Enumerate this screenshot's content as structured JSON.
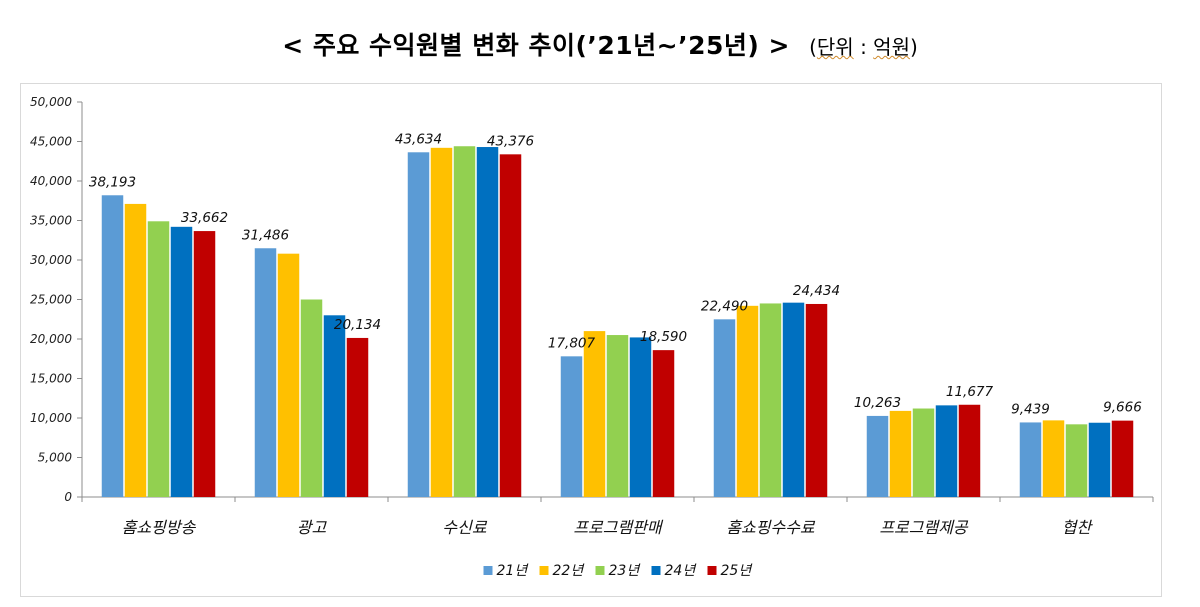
{
  "title": {
    "main": "<  주요  수익원별  변화  추이(’21년~’25년)  >",
    "unit_open": "(",
    "unit_word": "단위",
    "unit_rest": " : ",
    "unit_value": "억원",
    "unit_close": ")"
  },
  "chart_data": {
    "type": "bar",
    "title": "주요 수익원별 변화 추이(’21년~’25년)",
    "unit": "억원",
    "xlabel": "",
    "ylabel": "",
    "ylim": [
      0,
      50000
    ],
    "yticks": [
      0,
      5000,
      10000,
      15000,
      20000,
      25000,
      30000,
      35000,
      40000,
      45000,
      50000
    ],
    "ytick_labels": [
      "0",
      "5,000",
      "10,000",
      "15,000",
      "20,000",
      "25,000",
      "30,000",
      "35,000",
      "40,000",
      "45,000",
      "50,000"
    ],
    "grid": false,
    "legend_position": "bottom",
    "categories": [
      "홈쇼핑방송",
      "광고",
      "수신료",
      "프로그램판매",
      "홈쇼핑수수료",
      "프로그램제공",
      "협찬"
    ],
    "series": [
      {
        "name": "21년",
        "color": "#5b9bd5",
        "values": [
          38193,
          31486,
          43634,
          17807,
          22490,
          10263,
          9439
        ]
      },
      {
        "name": "22년",
        "color": "#ffc000",
        "values": [
          37100,
          30800,
          44200,
          21000,
          24200,
          10900,
          9700
        ]
      },
      {
        "name": "23년",
        "color": "#92d050",
        "values": [
          34900,
          25000,
          44400,
          20500,
          24500,
          11200,
          9200
        ]
      },
      {
        "name": "24년",
        "color": "#0070c0",
        "values": [
          34200,
          23000,
          44300,
          20200,
          24600,
          11600,
          9400
        ]
      },
      {
        "name": "25년",
        "color": "#c00000",
        "values": [
          33662,
          20134,
          43376,
          18590,
          24434,
          11677,
          9666
        ]
      }
    ],
    "data_labels": [
      {
        "category": 0,
        "series": 0,
        "text": "38,193"
      },
      {
        "category": 0,
        "series": 4,
        "text": "33,662"
      },
      {
        "category": 1,
        "series": 0,
        "text": "31,486"
      },
      {
        "category": 1,
        "series": 4,
        "text": "20,134"
      },
      {
        "category": 2,
        "series": 0,
        "text": "43,634"
      },
      {
        "category": 2,
        "series": 4,
        "text": "43,376"
      },
      {
        "category": 3,
        "series": 0,
        "text": "17,807"
      },
      {
        "category": 3,
        "series": 4,
        "text": "18,590"
      },
      {
        "category": 4,
        "series": 0,
        "text": "22,490"
      },
      {
        "category": 4,
        "series": 4,
        "text": "24,434"
      },
      {
        "category": 5,
        "series": 0,
        "text": "10,263"
      },
      {
        "category": 5,
        "series": 4,
        "text": "11,677"
      },
      {
        "category": 6,
        "series": 0,
        "text": "9,439"
      },
      {
        "category": 6,
        "series": 4,
        "text": "9,666"
      }
    ]
  }
}
